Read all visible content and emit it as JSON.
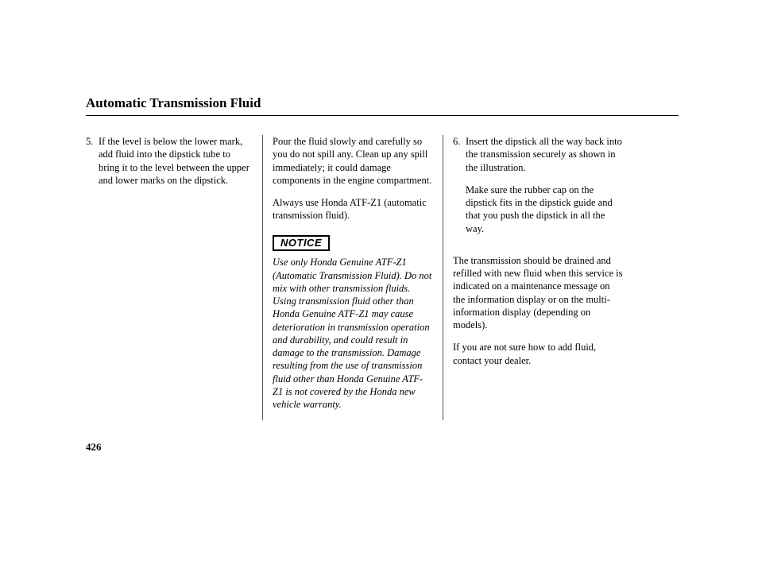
{
  "title": "Automatic Transmission Fluid",
  "pageNumber": "426",
  "col1": {
    "step5num": "5.",
    "step5text": "If the level is below the lower mark, add fluid into the dipstick tube to bring it to the level between the upper and lower marks on the dipstick."
  },
  "col2": {
    "p1": "Pour the fluid slowly and carefully so you do not spill any. Clean up any spill immediately; it could damage components in the engine compartment.",
    "p2": "Always use Honda ATF-Z1 (automatic transmission fluid).",
    "noticeLabel": "NOTICE",
    "notice": "Use only Honda Genuine ATF-Z1 (Automatic Transmission Fluid). Do not mix with other transmission fluids. Using transmission fluid other than Honda Genuine ATF-Z1 may cause deterioration in transmission operation and durability, and could result in damage to the transmission. Damage resulting from the use of transmission fluid other than Honda Genuine ATF-Z1 is not covered by the Honda new vehicle warranty."
  },
  "col3": {
    "step6num": "6.",
    "step6a": "Insert the dipstick all the way back into the transmission securely as shown in the illustration.",
    "step6b": "Make sure the rubber cap on the dipstick fits in the dipstick guide and that you push the dipstick in all the way.",
    "p3": "The transmission should be drained and refilled with new fluid when this service is indicated on a maintenance message on the information display or on the multi-information display (depending on models).",
    "p4": "If you are not sure how to add fluid, contact your dealer."
  }
}
